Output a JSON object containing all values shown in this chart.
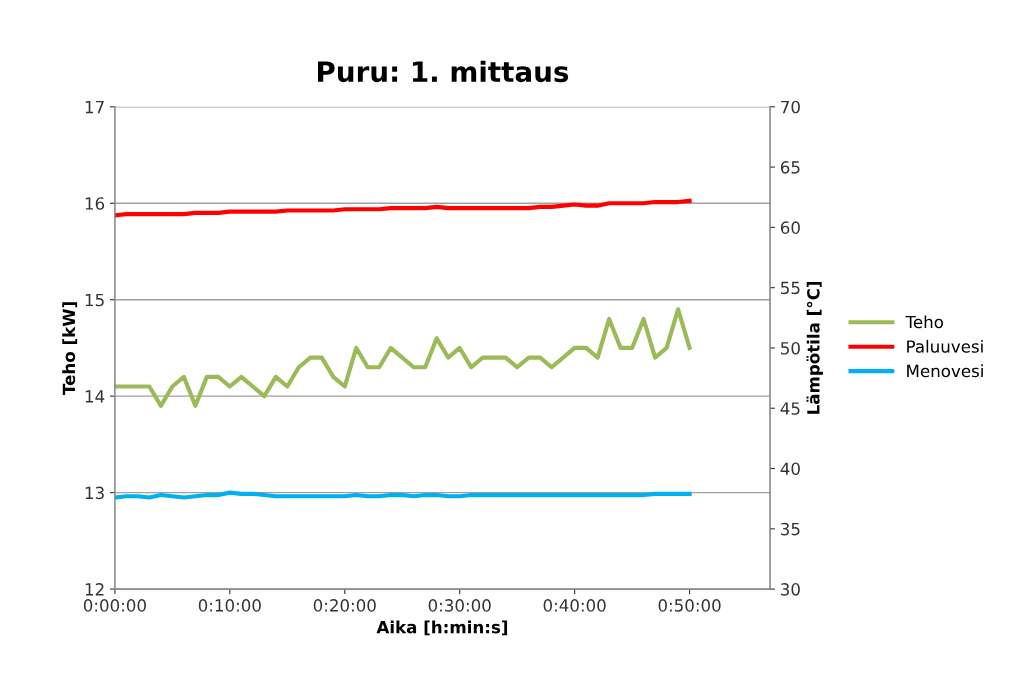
{
  "chart_data": {
    "type": "line",
    "title": "Puru: 1. mittaus",
    "xlabel": "Aika [h:min:s]",
    "ylabel": "Teho [kW]",
    "y2label": "Lämpötila [°C]",
    "x": [
      0,
      1,
      2,
      3,
      4,
      5,
      6,
      7,
      8,
      9,
      10,
      11,
      12,
      13,
      14,
      15,
      16,
      17,
      18,
      19,
      20,
      21,
      22,
      23,
      24,
      25,
      26,
      27,
      28,
      29,
      30,
      31,
      32,
      33,
      34,
      35,
      36,
      37,
      38,
      39,
      40,
      41,
      42,
      43,
      44,
      45,
      46,
      47,
      48,
      49,
      50
    ],
    "series": [
      {
        "name": "Teho",
        "color": "#9bbb59",
        "values": [
          14.1,
          14.1,
          14.1,
          14.1,
          13.9,
          14.1,
          14.2,
          13.9,
          14.2,
          14.2,
          14.1,
          14.2,
          14.1,
          14.0,
          14.2,
          14.1,
          14.3,
          14.4,
          14.4,
          14.2,
          14.1,
          14.5,
          14.3,
          14.3,
          14.5,
          14.4,
          14.3,
          14.3,
          14.6,
          14.4,
          14.5,
          14.3,
          14.4,
          14.4,
          14.4,
          14.3,
          14.4,
          14.4,
          14.3,
          14.4,
          14.5,
          14.5,
          14.4,
          14.8,
          14.5,
          14.5,
          14.8,
          14.4,
          14.5,
          14.9,
          14.5
        ]
      },
      {
        "name": "Paluuvesi",
        "color": "#ff0000",
        "axis": "y2",
        "values": [
          61.0,
          61.1,
          61.1,
          61.1,
          61.1,
          61.1,
          61.1,
          61.2,
          61.2,
          61.2,
          61.3,
          61.3,
          61.3,
          61.3,
          61.3,
          61.4,
          61.4,
          61.4,
          61.4,
          61.4,
          61.5,
          61.5,
          61.5,
          61.5,
          61.6,
          61.6,
          61.6,
          61.6,
          61.7,
          61.6,
          61.6,
          61.6,
          61.6,
          61.6,
          61.6,
          61.6,
          61.6,
          61.7,
          61.7,
          61.8,
          61.9,
          61.8,
          61.8,
          62.0,
          62.0,
          62.0,
          62.0,
          62.1,
          62.1,
          62.1,
          62.2
        ]
      },
      {
        "name": "Menovesi",
        "color": "#00b0f0",
        "axis": "y2",
        "values": [
          37.6,
          37.7,
          37.7,
          37.6,
          37.8,
          37.7,
          37.6,
          37.7,
          37.8,
          37.8,
          38.0,
          37.9,
          37.9,
          37.8,
          37.7,
          37.7,
          37.7,
          37.7,
          37.7,
          37.7,
          37.7,
          37.8,
          37.7,
          37.7,
          37.8,
          37.8,
          37.7,
          37.8,
          37.8,
          37.7,
          37.7,
          37.8,
          37.8,
          37.8,
          37.8,
          37.8,
          37.8,
          37.8,
          37.8,
          37.8,
          37.8,
          37.8,
          37.8,
          37.8,
          37.8,
          37.8,
          37.8,
          37.9,
          37.9,
          37.9,
          37.9
        ]
      }
    ],
    "xlim": [
      0,
      57
    ],
    "xticks": [
      {
        "value": 0,
        "label": "0:00:00"
      },
      {
        "value": 10,
        "label": "0:10:00"
      },
      {
        "value": 20,
        "label": "0:20:00"
      },
      {
        "value": 30,
        "label": "0:30:00"
      },
      {
        "value": 40,
        "label": "0:40:00"
      },
      {
        "value": 50,
        "label": "0:50:00"
      }
    ],
    "ylim": [
      12,
      17
    ],
    "yticks": [
      12,
      13,
      14,
      15,
      16,
      17
    ],
    "y2lim": [
      30,
      70
    ],
    "y2ticks": [
      30,
      35,
      40,
      45,
      50,
      55,
      60,
      65,
      70
    ],
    "grid": "y",
    "legend": "right",
    "marker": "none",
    "line_style": "solid"
  }
}
